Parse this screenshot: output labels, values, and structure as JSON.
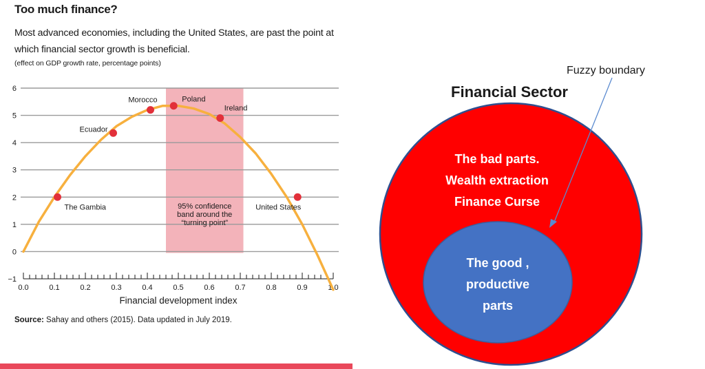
{
  "left": {
    "title": "Too much finance?",
    "subtitle": "Most advanced economies, including the United States, are past the point at which financial sector growth is beneficial.",
    "note": "(effect on GDP growth rate, percentage points)",
    "source_label": "Source:",
    "source_text": "Sahay and others (2015). Data updated in July 2019."
  },
  "chart_data": [
    {
      "type": "line",
      "xlabel": "Financial development index",
      "ylabel": "",
      "xlim": [
        0,
        1.0
      ],
      "ylim": [
        -1,
        6
      ],
      "x_ticks": [
        "0.0",
        "0.1",
        "0.2",
        "0.3",
        "0.4",
        "0.5",
        "0.6",
        "0.7",
        "0.8",
        "0.9",
        "1.0"
      ],
      "y_ticks": [
        "−1",
        "0",
        "1",
        "2",
        "3",
        "4",
        "5",
        "6"
      ],
      "grid": true,
      "curve": {
        "x": [
          0.0,
          0.05,
          0.1,
          0.15,
          0.2,
          0.25,
          0.3,
          0.35,
          0.4,
          0.45,
          0.5,
          0.55,
          0.6,
          0.65,
          0.7,
          0.75,
          0.8,
          0.85,
          0.9,
          0.95,
          1.0
        ],
        "y": [
          0.0,
          1.1,
          2.0,
          2.8,
          3.5,
          4.1,
          4.6,
          4.95,
          5.2,
          5.35,
          5.35,
          5.25,
          5.05,
          4.7,
          4.2,
          3.6,
          2.85,
          2.0,
          1.0,
          -0.15,
          -1.4
        ]
      },
      "points": [
        {
          "label": "The Gambia",
          "x": 0.11,
          "y": 2.0
        },
        {
          "label": "Ecuador",
          "x": 0.29,
          "y": 4.35
        },
        {
          "label": "Morocco",
          "x": 0.41,
          "y": 5.2
        },
        {
          "label": "Poland",
          "x": 0.485,
          "y": 5.35
        },
        {
          "label": "Ireland",
          "x": 0.635,
          "y": 4.9
        },
        {
          "label": "United States",
          "x": 0.885,
          "y": 2.0
        }
      ],
      "band": {
        "x0": 0.46,
        "x1": 0.71,
        "label_lines": [
          "95% confidence",
          "band around the",
          "“turning point”"
        ]
      },
      "colors": {
        "curve": "#f7b03e",
        "point": "#e2303a",
        "band": "#f1a6ae",
        "grid": "#9a9a9a"
      }
    },
    {
      "type": "diagram",
      "title": "Financial Sector",
      "annotation": "Fuzzy boundary",
      "outer": {
        "lines": [
          "The bad parts.",
          "Wealth extraction",
          "Finance Curse"
        ],
        "color": "#ff0000"
      },
      "inner": {
        "lines": [
          "The good ,",
          "productive",
          "parts"
        ],
        "color": "#4472c4"
      },
      "colors": {
        "outer_stroke": "#2f4f8f",
        "arrow": "#5b8bd0"
      }
    }
  ]
}
